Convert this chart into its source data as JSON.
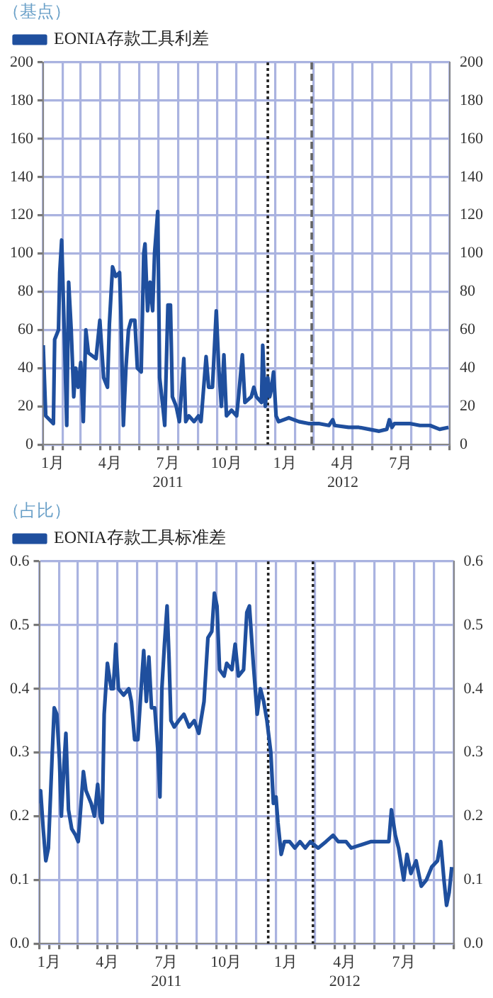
{
  "chart_data": [
    {
      "type": "line",
      "ylabel": "（基点）",
      "legend": "top left",
      "grid": true,
      "xlim": [
        "2011-01-01",
        "2012-10-01"
      ],
      "xticks": [
        {
          "value": "2011-01-01",
          "label": null
        },
        {
          "value": "2011-01-16",
          "label": "1月"
        },
        {
          "value": "2011-02-01",
          "label": null
        },
        {
          "value": "2011-03-01",
          "label": null
        },
        {
          "value": "2011-04-01",
          "label": null
        },
        {
          "value": "2011-04-16",
          "label": "4月"
        },
        {
          "value": "2011-05-01",
          "label": null
        },
        {
          "value": "2011-06-01",
          "label": null
        },
        {
          "value": "2011-07-01",
          "label": null
        },
        {
          "value": "2011-07-16",
          "label": "7月\n2011"
        },
        {
          "value": "2011-08-01",
          "label": null
        },
        {
          "value": "2011-09-01",
          "label": null
        },
        {
          "value": "2011-10-01",
          "label": null
        },
        {
          "value": "2011-10-16",
          "label": "10月"
        },
        {
          "value": "2011-11-01",
          "label": null
        },
        {
          "value": "2011-12-01",
          "label": null
        },
        {
          "value": "2012-01-01",
          "label": null
        },
        {
          "value": "2012-01-16",
          "label": "1月"
        },
        {
          "value": "2012-02-01",
          "label": null
        },
        {
          "value": "2012-03-01",
          "label": null
        },
        {
          "value": "2012-04-01",
          "label": null
        },
        {
          "value": "2012-04-16",
          "label": "4月\n2012"
        },
        {
          "value": "2012-05-01",
          "label": null
        },
        {
          "value": "2012-06-01",
          "label": null
        },
        {
          "value": "2012-07-01",
          "label": null
        },
        {
          "value": "2012-07-16",
          "label": "7月"
        },
        {
          "value": "2012-08-01",
          "label": null
        },
        {
          "value": "2012-09-01",
          "label": null
        },
        {
          "value": "2012-10-01",
          "label": null
        }
      ],
      "ylim": [
        0,
        200
      ],
      "yticks": [
        0,
        20,
        40,
        60,
        80,
        100,
        120,
        140,
        160,
        180,
        200
      ],
      "y2lim": [
        0,
        200
      ],
      "y2ticks": [
        0,
        20,
        40,
        60,
        80,
        100,
        120,
        140,
        160,
        180,
        200
      ],
      "ref_lines": [
        {
          "axis": "x",
          "value": "2011-12-20",
          "color": "#222222",
          "line_style": "dotted"
        },
        {
          "axis": "x",
          "value": "2012-02-27",
          "color": "#666666",
          "line_style": "dashed"
        }
      ],
      "series": [
        {
          "name": "EONIA存款工具利差",
          "color": "#1f4f9e",
          "x": [
            "2011-01-01",
            "2011-01-05",
            "2011-01-17",
            "2011-01-19",
            "2011-01-25",
            "2011-01-27",
            "2011-01-30",
            "2011-02-03",
            "2011-02-07",
            "2011-02-10",
            "2011-02-14",
            "2011-02-18",
            "2011-02-21",
            "2011-02-25",
            "2011-03-01",
            "2011-03-05",
            "2011-03-09",
            "2011-03-13",
            "2011-03-17",
            "2011-03-25",
            "2011-03-31",
            "2011-04-06",
            "2011-04-12",
            "2011-04-15",
            "2011-04-20",
            "2011-04-25",
            "2011-05-01",
            "2011-05-03",
            "2011-05-07",
            "2011-05-11",
            "2011-05-15",
            "2011-05-19",
            "2011-05-25",
            "2011-05-29",
            "2011-06-04",
            "2011-06-08",
            "2011-06-10",
            "2011-06-14",
            "2011-06-18",
            "2011-06-22",
            "2011-06-25",
            "2011-06-30",
            "2011-07-03",
            "2011-07-08",
            "2011-07-11",
            "2011-07-16",
            "2011-07-20",
            "2011-07-23",
            "2011-07-29",
            "2011-08-03",
            "2011-08-10",
            "2011-08-13",
            "2011-08-18",
            "2011-08-26",
            "2011-09-02",
            "2011-09-06",
            "2011-09-14",
            "2011-09-18",
            "2011-09-24",
            "2011-09-30",
            "2011-10-04",
            "2011-10-08",
            "2011-10-12",
            "2011-10-16",
            "2011-10-24",
            "2011-11-01",
            "2011-11-04",
            "2011-11-10",
            "2011-11-14",
            "2011-11-24",
            "2011-11-28",
            "2011-12-02",
            "2011-12-10",
            "2011-12-12",
            "2011-12-16",
            "2011-12-20",
            "2011-12-23",
            "2011-12-25",
            "2011-12-29",
            "2012-01-02",
            "2012-01-06",
            "2012-01-22",
            "2012-02-07",
            "2012-02-22",
            "2012-03-09",
            "2012-03-25",
            "2012-03-31",
            "2012-04-03",
            "2012-04-25",
            "2012-05-11",
            "2012-05-27",
            "2012-06-12",
            "2012-06-24",
            "2012-06-28",
            "2012-07-02",
            "2012-07-06",
            "2012-07-30",
            "2012-08-15",
            "2012-08-31",
            "2012-09-15",
            "2012-09-29"
          ],
          "values": [
            52,
            15,
            11,
            55,
            60,
            90,
            107,
            60,
            10,
            85,
            60,
            25,
            40,
            30,
            43,
            12,
            60,
            48,
            47,
            45,
            65,
            35,
            30,
            63,
            93,
            88,
            90,
            70,
            10,
            40,
            60,
            65,
            65,
            40,
            38,
            100,
            105,
            70,
            85,
            70,
            100,
            122,
            35,
            20,
            10,
            73,
            73,
            25,
            20,
            12,
            45,
            12,
            15,
            12,
            15,
            12,
            46,
            30,
            30,
            70,
            40,
            20,
            47,
            15,
            18,
            15,
            25,
            47,
            22,
            25,
            30,
            25,
            22,
            52,
            20,
            35,
            25,
            28,
            38,
            15,
            12,
            14,
            12,
            11,
            11,
            10,
            13,
            10,
            9,
            9,
            8,
            7,
            8,
            13,
            9,
            11,
            11,
            10,
            10,
            8,
            9
          ]
        }
      ]
    },
    {
      "type": "line",
      "ylabel": "（占比）",
      "legend": "top left",
      "grid": true,
      "xlim": [
        "2011-01-01",
        "2012-10-01"
      ],
      "xticks": [
        {
          "value": "2011-01-01",
          "label": null
        },
        {
          "value": "2011-01-16",
          "label": "1月"
        },
        {
          "value": "2011-02-01",
          "label": null
        },
        {
          "value": "2011-03-01",
          "label": null
        },
        {
          "value": "2011-04-01",
          "label": null
        },
        {
          "value": "2011-04-16",
          "label": "4月"
        },
        {
          "value": "2011-05-01",
          "label": null
        },
        {
          "value": "2011-06-01",
          "label": null
        },
        {
          "value": "2011-07-01",
          "label": null
        },
        {
          "value": "2011-07-16",
          "label": "7月\n2011"
        },
        {
          "value": "2011-08-01",
          "label": null
        },
        {
          "value": "2011-09-01",
          "label": null
        },
        {
          "value": "2011-10-01",
          "label": null
        },
        {
          "value": "2011-10-16",
          "label": "10月"
        },
        {
          "value": "2011-11-01",
          "label": null
        },
        {
          "value": "2011-12-01",
          "label": null
        },
        {
          "value": "2012-01-01",
          "label": null
        },
        {
          "value": "2012-01-16",
          "label": "1月"
        },
        {
          "value": "2012-02-01",
          "label": null
        },
        {
          "value": "2012-03-01",
          "label": null
        },
        {
          "value": "2012-04-01",
          "label": null
        },
        {
          "value": "2012-04-16",
          "label": "4月\n2012"
        },
        {
          "value": "2012-05-01",
          "label": null
        },
        {
          "value": "2012-06-01",
          "label": null
        },
        {
          "value": "2012-07-01",
          "label": null
        },
        {
          "value": "2012-07-16",
          "label": "7月"
        },
        {
          "value": "2012-08-01",
          "label": null
        },
        {
          "value": "2012-09-01",
          "label": null
        },
        {
          "value": "2012-10-01",
          "label": null
        }
      ],
      "ylim": [
        0,
        0.6
      ],
      "yticks": [
        {
          "value": 0,
          "label": "0.0"
        },
        0.1,
        0.2,
        0.3,
        0.4,
        0.5,
        0.6
      ],
      "y2lim": [
        0,
        0.6
      ],
      "y2ticks": [
        {
          "value": 0,
          "label": "0.0"
        },
        0.1,
        0.2,
        0.3,
        0.4,
        0.5,
        0.6
      ],
      "ref_lines": [
        {
          "axis": "x",
          "value": "2011-12-20",
          "color": "#222222",
          "line_style": "dotted"
        },
        {
          "axis": "x",
          "value": "2012-02-27",
          "color": "#222222",
          "line_style": "dotted"
        }
      ],
      "series": [
        {
          "name": "EONIA存款工具标准差",
          "color": "#1f4f9e",
          "x": [
            "2011-01-01",
            "2011-01-03",
            "2011-01-07",
            "2011-01-11",
            "2011-01-15",
            "2011-01-21",
            "2011-01-24",
            "2011-01-28",
            "2011-02-01",
            "2011-02-04",
            "2011-02-08",
            "2011-02-11",
            "2011-02-15",
            "2011-02-20",
            "2011-02-26",
            "2011-03-02",
            "2011-03-10",
            "2011-03-14",
            "2011-03-22",
            "2011-03-27",
            "2011-04-01",
            "2011-04-05",
            "2011-04-08",
            "2011-04-11",
            "2011-04-16",
            "2011-04-22",
            "2011-04-25",
            "2011-04-29",
            "2011-05-03",
            "2011-05-11",
            "2011-05-19",
            "2011-05-23",
            "2011-05-28",
            "2011-06-02",
            "2011-06-07",
            "2011-06-11",
            "2011-06-15",
            "2011-06-19",
            "2011-06-23",
            "2011-06-28",
            "2011-07-03",
            "2011-07-06",
            "2011-07-09",
            "2011-07-13",
            "2011-07-17",
            "2011-07-20",
            "2011-07-23",
            "2011-07-28",
            "2011-08-04",
            "2011-08-12",
            "2011-08-20",
            "2011-08-28",
            "2011-09-04",
            "2011-09-12",
            "2011-09-18",
            "2011-09-24",
            "2011-09-28",
            "2011-10-02",
            "2011-10-06",
            "2011-10-13",
            "2011-10-17",
            "2011-10-25",
            "2011-10-30",
            "2011-11-04",
            "2011-11-12",
            "2011-11-17",
            "2011-11-21",
            "2011-11-27",
            "2011-12-03",
            "2011-12-08",
            "2011-12-13",
            "2011-12-18",
            "2011-12-24",
            "2011-12-28",
            "2012-01-01",
            "2012-01-04",
            "2012-01-09",
            "2012-01-14",
            "2012-01-22",
            "2012-01-30",
            "2012-02-07",
            "2012-02-15",
            "2012-02-23",
            "2012-03-06",
            "2012-03-18",
            "2012-03-29",
            "2012-04-06",
            "2012-04-18",
            "2012-04-26",
            "2012-05-11",
            "2012-05-26",
            "2012-06-11",
            "2012-06-23",
            "2012-06-27",
            "2012-07-03",
            "2012-07-08",
            "2012-07-16",
            "2012-07-21",
            "2012-07-27",
            "2012-08-04",
            "2012-08-12",
            "2012-08-20",
            "2012-08-28",
            "2012-09-06",
            "2012-09-11",
            "2012-09-16",
            "2012-09-20",
            "2012-09-24",
            "2012-09-28"
          ],
          "values": [
            0.22,
            0.24,
            0.18,
            0.13,
            0.15,
            0.3,
            0.37,
            0.36,
            0.29,
            0.2,
            0.28,
            0.33,
            0.21,
            0.18,
            0.17,
            0.16,
            0.27,
            0.24,
            0.22,
            0.2,
            0.25,
            0.2,
            0.19,
            0.36,
            0.44,
            0.4,
            0.4,
            0.47,
            0.4,
            0.39,
            0.4,
            0.38,
            0.32,
            0.32,
            0.4,
            0.46,
            0.38,
            0.45,
            0.37,
            0.37,
            0.3,
            0.23,
            0.4,
            0.47,
            0.53,
            0.45,
            0.35,
            0.34,
            0.35,
            0.36,
            0.34,
            0.35,
            0.33,
            0.38,
            0.48,
            0.49,
            0.55,
            0.53,
            0.43,
            0.42,
            0.44,
            0.43,
            0.47,
            0.42,
            0.43,
            0.52,
            0.53,
            0.44,
            0.36,
            0.4,
            0.38,
            0.35,
            0.3,
            0.22,
            0.23,
            0.19,
            0.14,
            0.16,
            0.16,
            0.15,
            0.16,
            0.15,
            0.16,
            0.15,
            0.16,
            0.17,
            0.16,
            0.16,
            0.15,
            0.155,
            0.16,
            0.16,
            0.16,
            0.21,
            0.17,
            0.15,
            0.1,
            0.14,
            0.11,
            0.13,
            0.09,
            0.1,
            0.12,
            0.13,
            0.16,
            0.1,
            0.06,
            0.08,
            0.12
          ]
        }
      ]
    }
  ]
}
